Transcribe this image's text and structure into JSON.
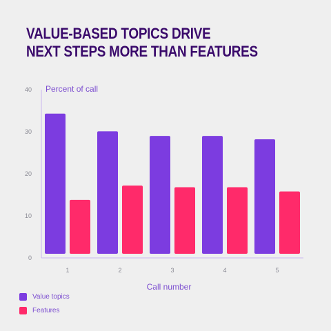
{
  "title": {
    "line1": "VALUE-BASED TOPICS DRIVE",
    "line2": "NEXT STEPS MORE THAN FEATURES"
  },
  "colors": {
    "title": "#3a0a6b",
    "axis_text": "#7d4fd0",
    "tick_text": "#8a8a94",
    "axis_line": "#c9b5ef",
    "background": "#efefef"
  },
  "chart_data": {
    "type": "bar",
    "title": "VALUE-BASED TOPICS DRIVE NEXT STEPS MORE THAN FEATURES",
    "xlabel": "Call number",
    "ylabel": "Percent of call",
    "categories": [
      "1",
      "2",
      "3",
      "4",
      "5"
    ],
    "ylim": [
      0,
      40
    ],
    "yticks": [
      "0",
      "10",
      "20",
      "30",
      "40"
    ],
    "grid": false,
    "legend_position": "bottom-left",
    "series": [
      {
        "name": "Value topics",
        "color": "#7c3ce0",
        "values": [
          34.3,
          30.1,
          29.0,
          29.0,
          28.2
        ]
      },
      {
        "name": "Features",
        "color": "#ff2a6a",
        "values": [
          13.8,
          17.2,
          16.8,
          16.8,
          15.8
        ]
      }
    ]
  }
}
